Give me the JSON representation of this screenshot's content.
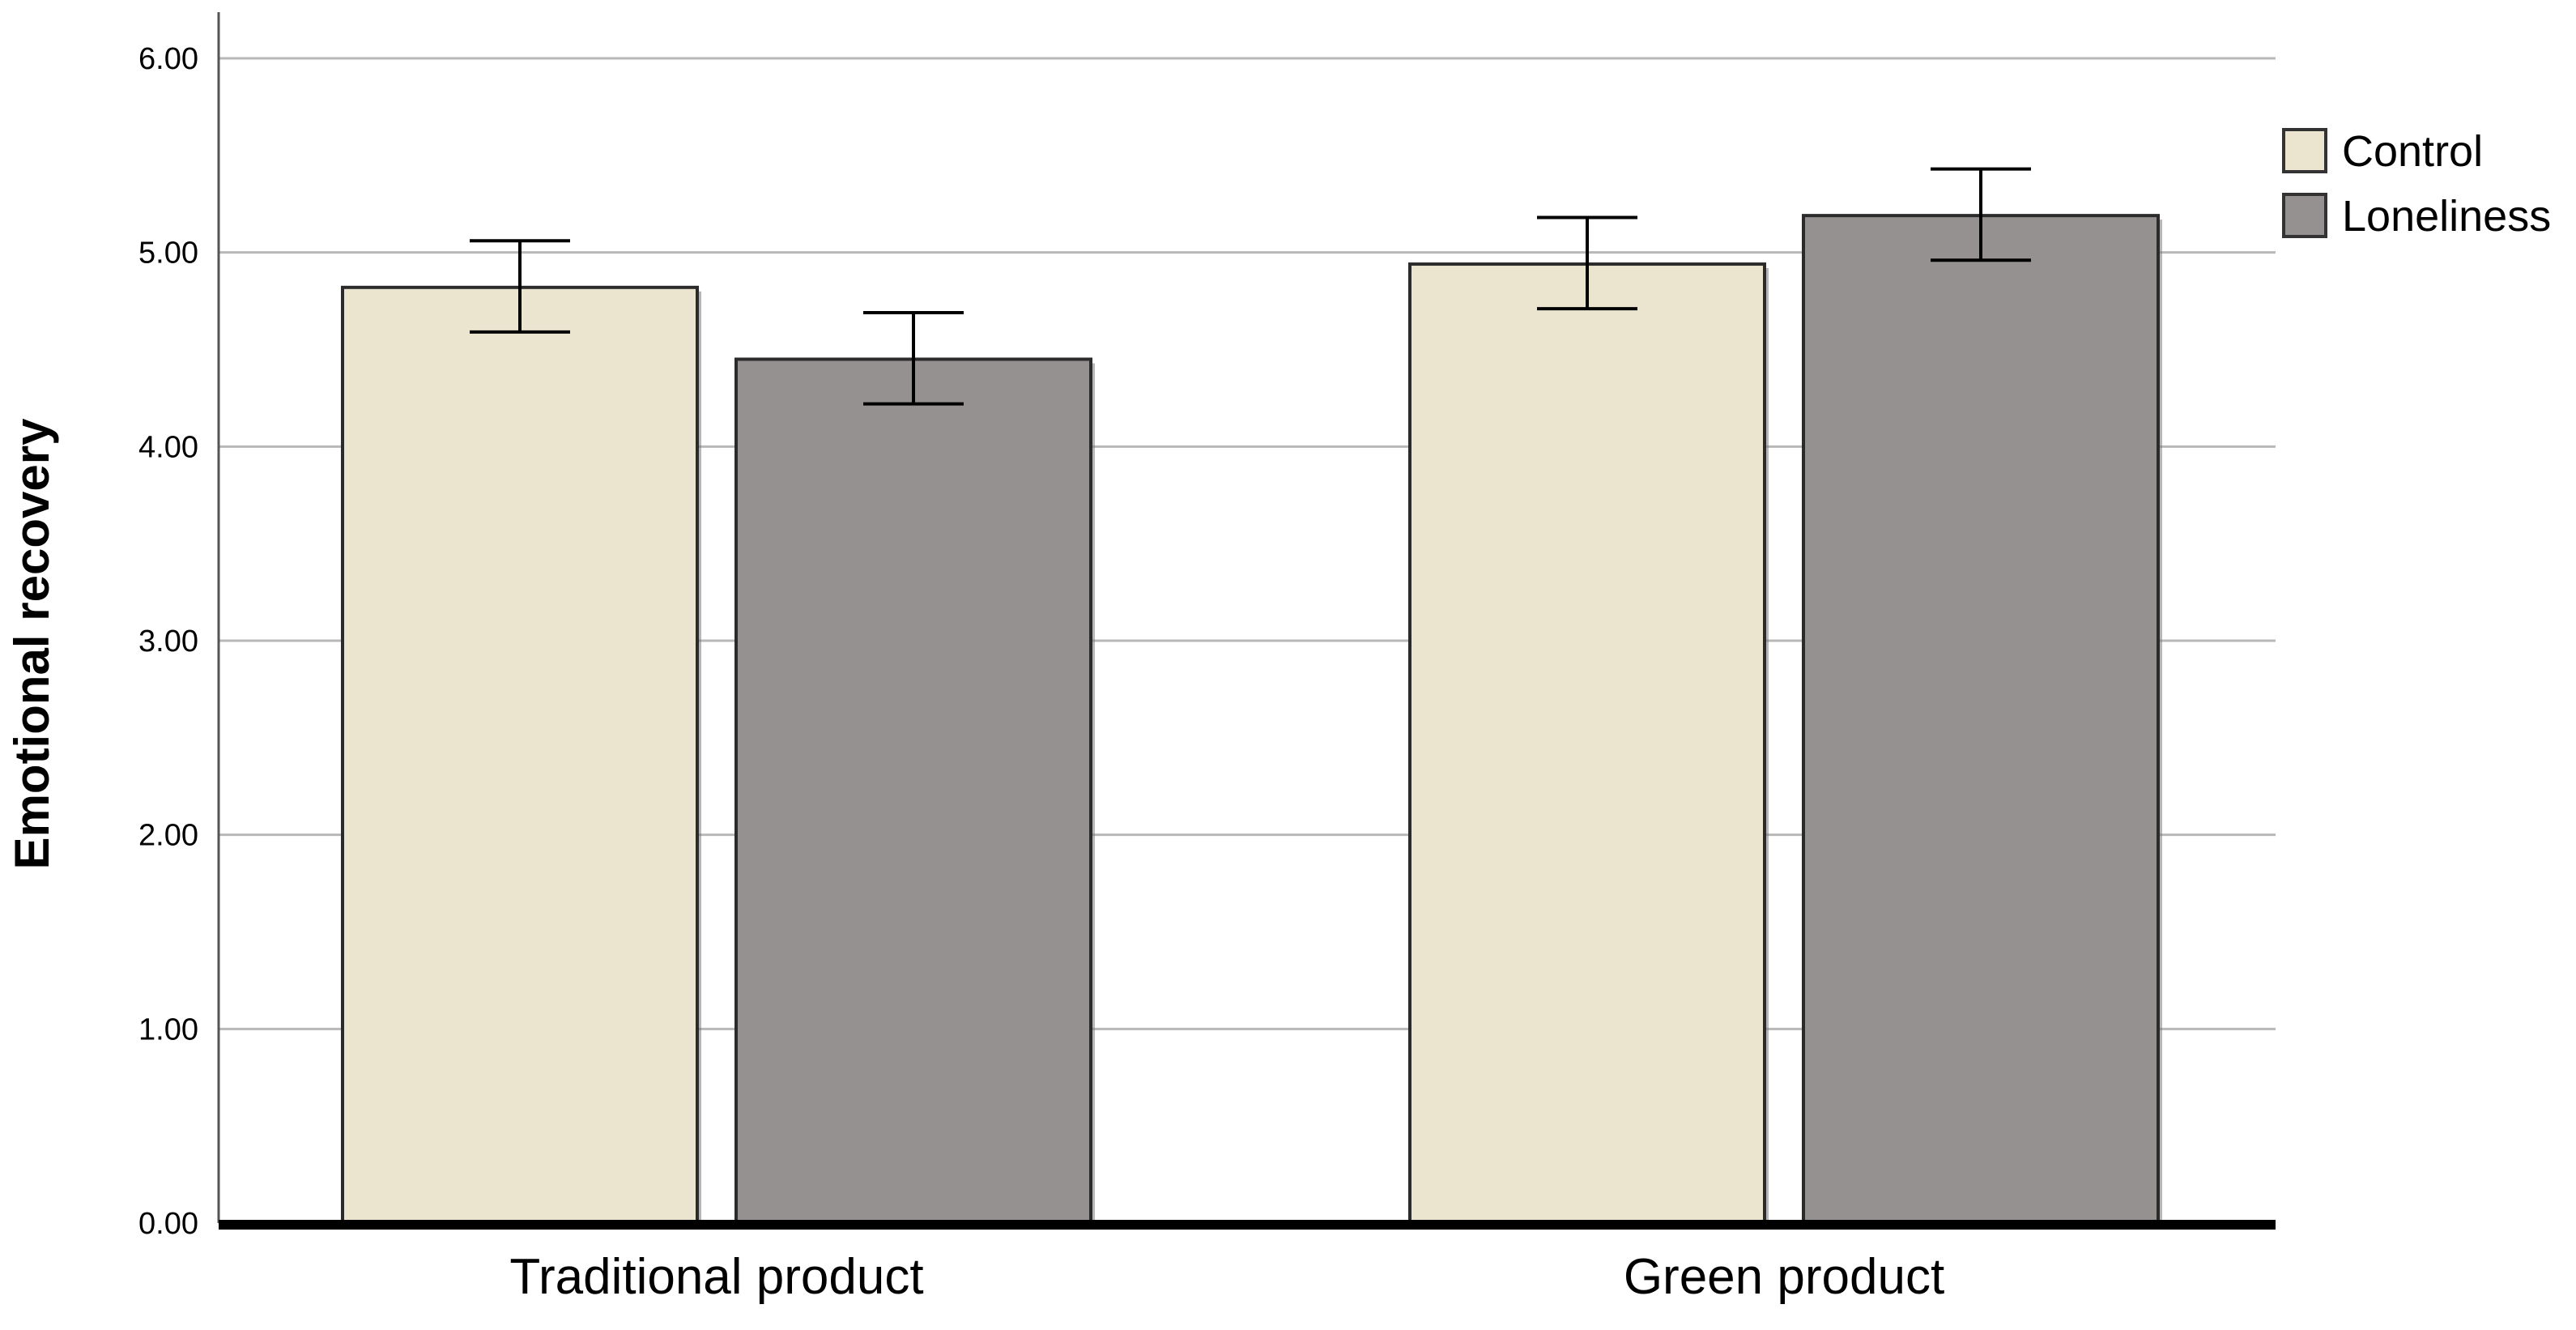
{
  "chart_data": {
    "type": "bar",
    "title": "",
    "xlabel": "",
    "ylabel": "Emotional recovery",
    "ylim": [
      0,
      6
    ],
    "yticks": [
      "0.00",
      "1.00",
      "2.00",
      "3.00",
      "4.00",
      "5.00",
      "6.00"
    ],
    "grid": true,
    "legend_position": "top-right",
    "categories": [
      "Traditional product",
      "Green product"
    ],
    "series": [
      {
        "name": "Control",
        "color": "#ebe5d0",
        "values": [
          4.82,
          4.94
        ],
        "error_low": [
          4.59,
          4.71
        ],
        "error_high": [
          5.06,
          5.18
        ]
      },
      {
        "name": "Loneliness",
        "color": "#959191",
        "values": [
          4.45,
          5.19
        ],
        "error_low": [
          4.22,
          4.96
        ],
        "error_high": [
          4.69,
          5.43
        ]
      }
    ]
  }
}
